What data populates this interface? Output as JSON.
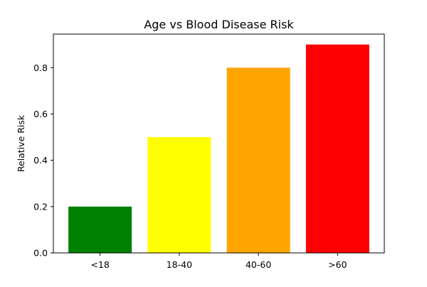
{
  "chart_data": {
    "type": "bar",
    "title": "Age vs Blood Disease Risk",
    "xlabel": "",
    "ylabel": "Relative Risk",
    "categories": [
      "<18",
      "18-40",
      "40-60",
      ">60"
    ],
    "values": [
      0.2,
      0.5,
      0.8,
      0.9
    ],
    "colors": [
      "#008000",
      "#ffff00",
      "#ffa500",
      "#ff0000"
    ],
    "ylim": [
      0,
      0.945
    ],
    "yticks": [
      0.0,
      0.2,
      0.4,
      0.6,
      0.8
    ],
    "ytick_labels": [
      "0.0",
      "0.2",
      "0.4",
      "0.6",
      "0.8"
    ],
    "grid": false,
    "legend": "none"
  }
}
